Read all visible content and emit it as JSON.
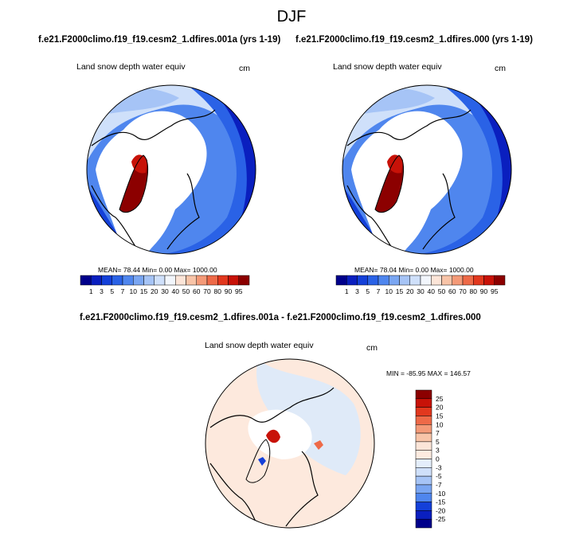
{
  "main_title": "DJF",
  "panel_left": {
    "run_title": "f.e21.F2000climo.f19_f19.cesm2_1.dfires.001a (yrs 1-19)",
    "variable": "Land snow depth water equiv",
    "units": "cm",
    "stats": "MEAN=  78.44  Min=   0.00  Max= 1000.00"
  },
  "panel_right": {
    "run_title": "f.e21.F2000climo.f19_f19.cesm2_1.dfires.000 (yrs 1-19)",
    "variable": "Land snow depth water equiv",
    "units": "cm",
    "stats": "MEAN=  78.04  Min=   0.00  Max= 1000.00"
  },
  "panel_diff": {
    "run_title": "f.e21.F2000climo.f19_f19.cesm2_1.dfires.001a - f.e21.F2000climo.f19_f19.cesm2_1.dfires.000",
    "variable": "Land snow depth water equiv",
    "units": "cm",
    "stats": "MIN = -85.95 MAX = 146.57"
  },
  "chart_data": [
    {
      "type": "heatmap",
      "title": "Land snow depth water equiv",
      "units": "cm",
      "projection": "polar-stereographic-north",
      "mean": 78.44,
      "min": 0.0,
      "max": 1000.0,
      "colorbar_ticks": [
        "1",
        "3",
        "5",
        "7",
        "10",
        "15",
        "20",
        "30",
        "40",
        "50",
        "60",
        "70",
        "80",
        "90",
        "95"
      ],
      "colors": [
        "#00008b",
        "#0a1fbf",
        "#1440d9",
        "#2a62e6",
        "#4f86ee",
        "#7aa6f2",
        "#a6c4f6",
        "#cfe0fa",
        "#f2f6fc",
        "#fce5d8",
        "#f8c4a8",
        "#f49a78",
        "#ee6a48",
        "#e2381e",
        "#c81208",
        "#8c0000"
      ]
    },
    {
      "type": "heatmap",
      "title": "Land snow depth water equiv",
      "units": "cm",
      "projection": "polar-stereographic-north",
      "mean": 78.04,
      "min": 0.0,
      "max": 1000.0,
      "colorbar_ticks": [
        "1",
        "3",
        "5",
        "7",
        "10",
        "15",
        "20",
        "30",
        "40",
        "50",
        "60",
        "70",
        "80",
        "90",
        "95"
      ],
      "colors": [
        "#00008b",
        "#0a1fbf",
        "#1440d9",
        "#2a62e6",
        "#4f86ee",
        "#7aa6f2",
        "#a6c4f6",
        "#cfe0fa",
        "#f2f6fc",
        "#fce5d8",
        "#f8c4a8",
        "#f49a78",
        "#ee6a48",
        "#e2381e",
        "#c81208",
        "#8c0000"
      ]
    },
    {
      "type": "heatmap",
      "title": "Land snow depth water equiv",
      "units": "cm",
      "projection": "polar-stereographic-north",
      "min": -85.95,
      "max": 146.57,
      "colorbar_ticks": [
        "25",
        "20",
        "15",
        "10",
        "7",
        "5",
        "3",
        "0",
        "-3",
        "-5",
        "-7",
        "-10",
        "-15",
        "-20",
        "-25"
      ],
      "colors": [
        "#8c0000",
        "#c81208",
        "#e2381e",
        "#ee6a48",
        "#f49a78",
        "#f8c4a8",
        "#fce5d8",
        "#fdebe0",
        "#e4eefb",
        "#cfe0fa",
        "#a6c4f6",
        "#7aa6f2",
        "#4f86ee",
        "#1440d9",
        "#0a1fbf",
        "#00008b"
      ]
    }
  ]
}
